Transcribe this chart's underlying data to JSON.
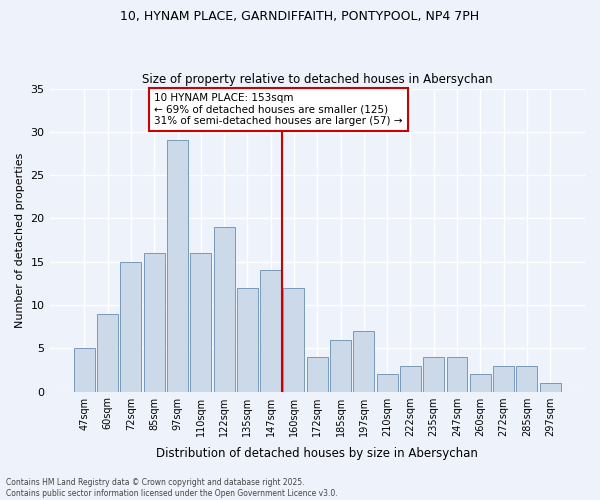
{
  "title_line1": "10, HYNAM PLACE, GARNDIFFAITH, PONTYPOOL, NP4 7PH",
  "title_line2": "Size of property relative to detached houses in Abersychan",
  "xlabel": "Distribution of detached houses by size in Abersychan",
  "ylabel": "Number of detached properties",
  "categories": [
    "47sqm",
    "60sqm",
    "72sqm",
    "85sqm",
    "97sqm",
    "110sqm",
    "122sqm",
    "135sqm",
    "147sqm",
    "160sqm",
    "172sqm",
    "185sqm",
    "197sqm",
    "210sqm",
    "222sqm",
    "235sqm",
    "247sqm",
    "260sqm",
    "272sqm",
    "285sqm",
    "297sqm"
  ],
  "values": [
    5,
    9,
    15,
    16,
    29,
    16,
    19,
    12,
    14,
    12,
    4,
    6,
    7,
    2,
    3,
    4,
    4,
    2,
    3,
    3,
    1
  ],
  "bar_color": "#ccd9e8",
  "bar_edge_color": "#7799bb",
  "background_color": "#eef2fa",
  "grid_color": "#ffffff",
  "marker_index": 8,
  "marker_color": "#cc0000",
  "annotation_title": "10 HYNAM PLACE: 153sqm",
  "annotation_line2": "← 69% of detached houses are smaller (125)",
  "annotation_line3": "31% of semi-detached houses are larger (57) →",
  "annotation_box_color": "#cc0000",
  "ylim": [
    0,
    35
  ],
  "yticks": [
    0,
    5,
    10,
    15,
    20,
    25,
    30,
    35
  ],
  "footer_line1": "Contains HM Land Registry data © Crown copyright and database right 2025.",
  "footer_line2": "Contains public sector information licensed under the Open Government Licence v3.0."
}
